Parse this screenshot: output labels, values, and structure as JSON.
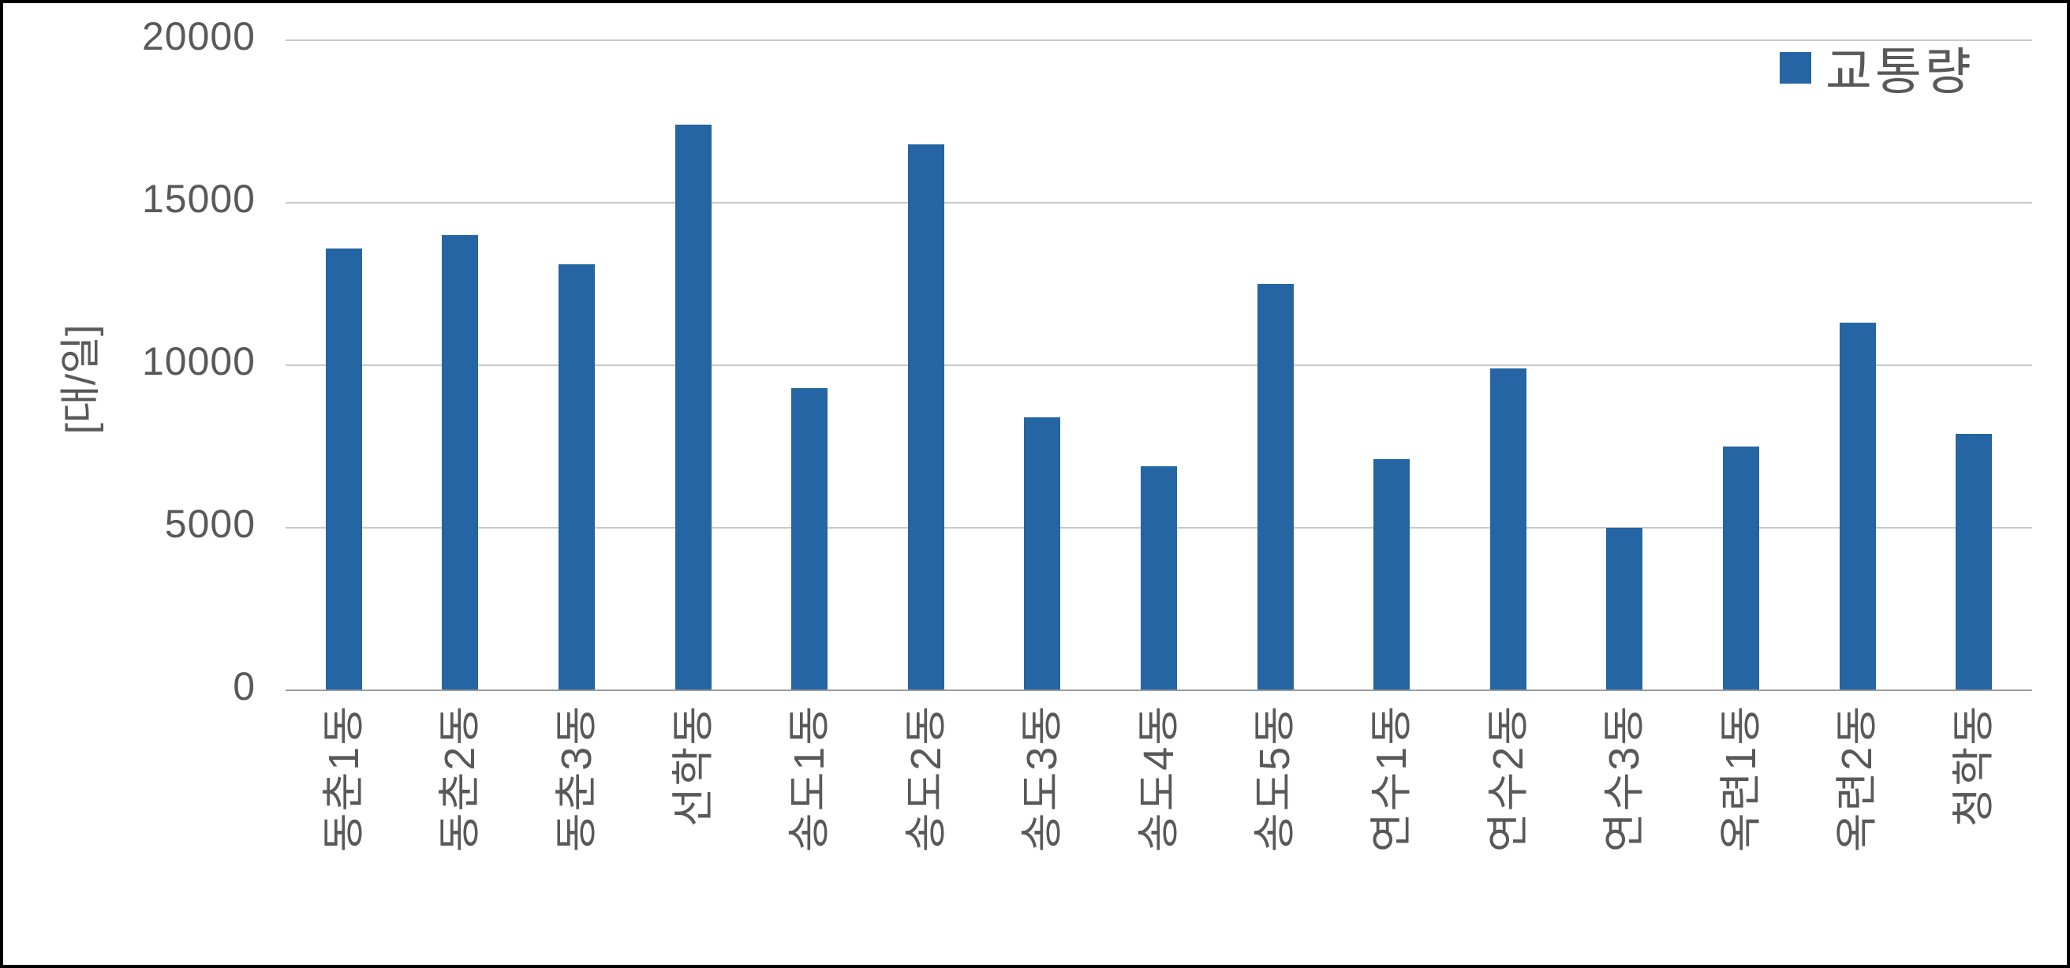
{
  "chart_data": {
    "type": "bar",
    "title": "",
    "legend": "교통량",
    "legend_position": "top-right",
    "ylabel": "[대/일]",
    "xlabel": "",
    "ylim": [
      0,
      20000
    ],
    "yticks": [
      0,
      5000,
      10000,
      15000,
      20000
    ],
    "grid": true,
    "categories": [
      "동춘1동",
      "동춘2동",
      "동춘3동",
      "선학동",
      "송도1동",
      "송도2동",
      "송도3동",
      "송도4동",
      "송도5동",
      "연수1동",
      "연수2동",
      "연수3동",
      "옥련1동",
      "옥련2동",
      "청학동"
    ],
    "values": [
      13600,
      14000,
      13100,
      17400,
      9300,
      16800,
      8400,
      6900,
      12500,
      7100,
      9900,
      5000,
      7500,
      11300,
      7900
    ]
  },
  "colors": {
    "bar": "#2565A3",
    "gridline": "#C9C9C9",
    "axis_line": "#9B9B9B",
    "text": "#595959",
    "border": "#000000",
    "background": "#FFFFFF"
  }
}
